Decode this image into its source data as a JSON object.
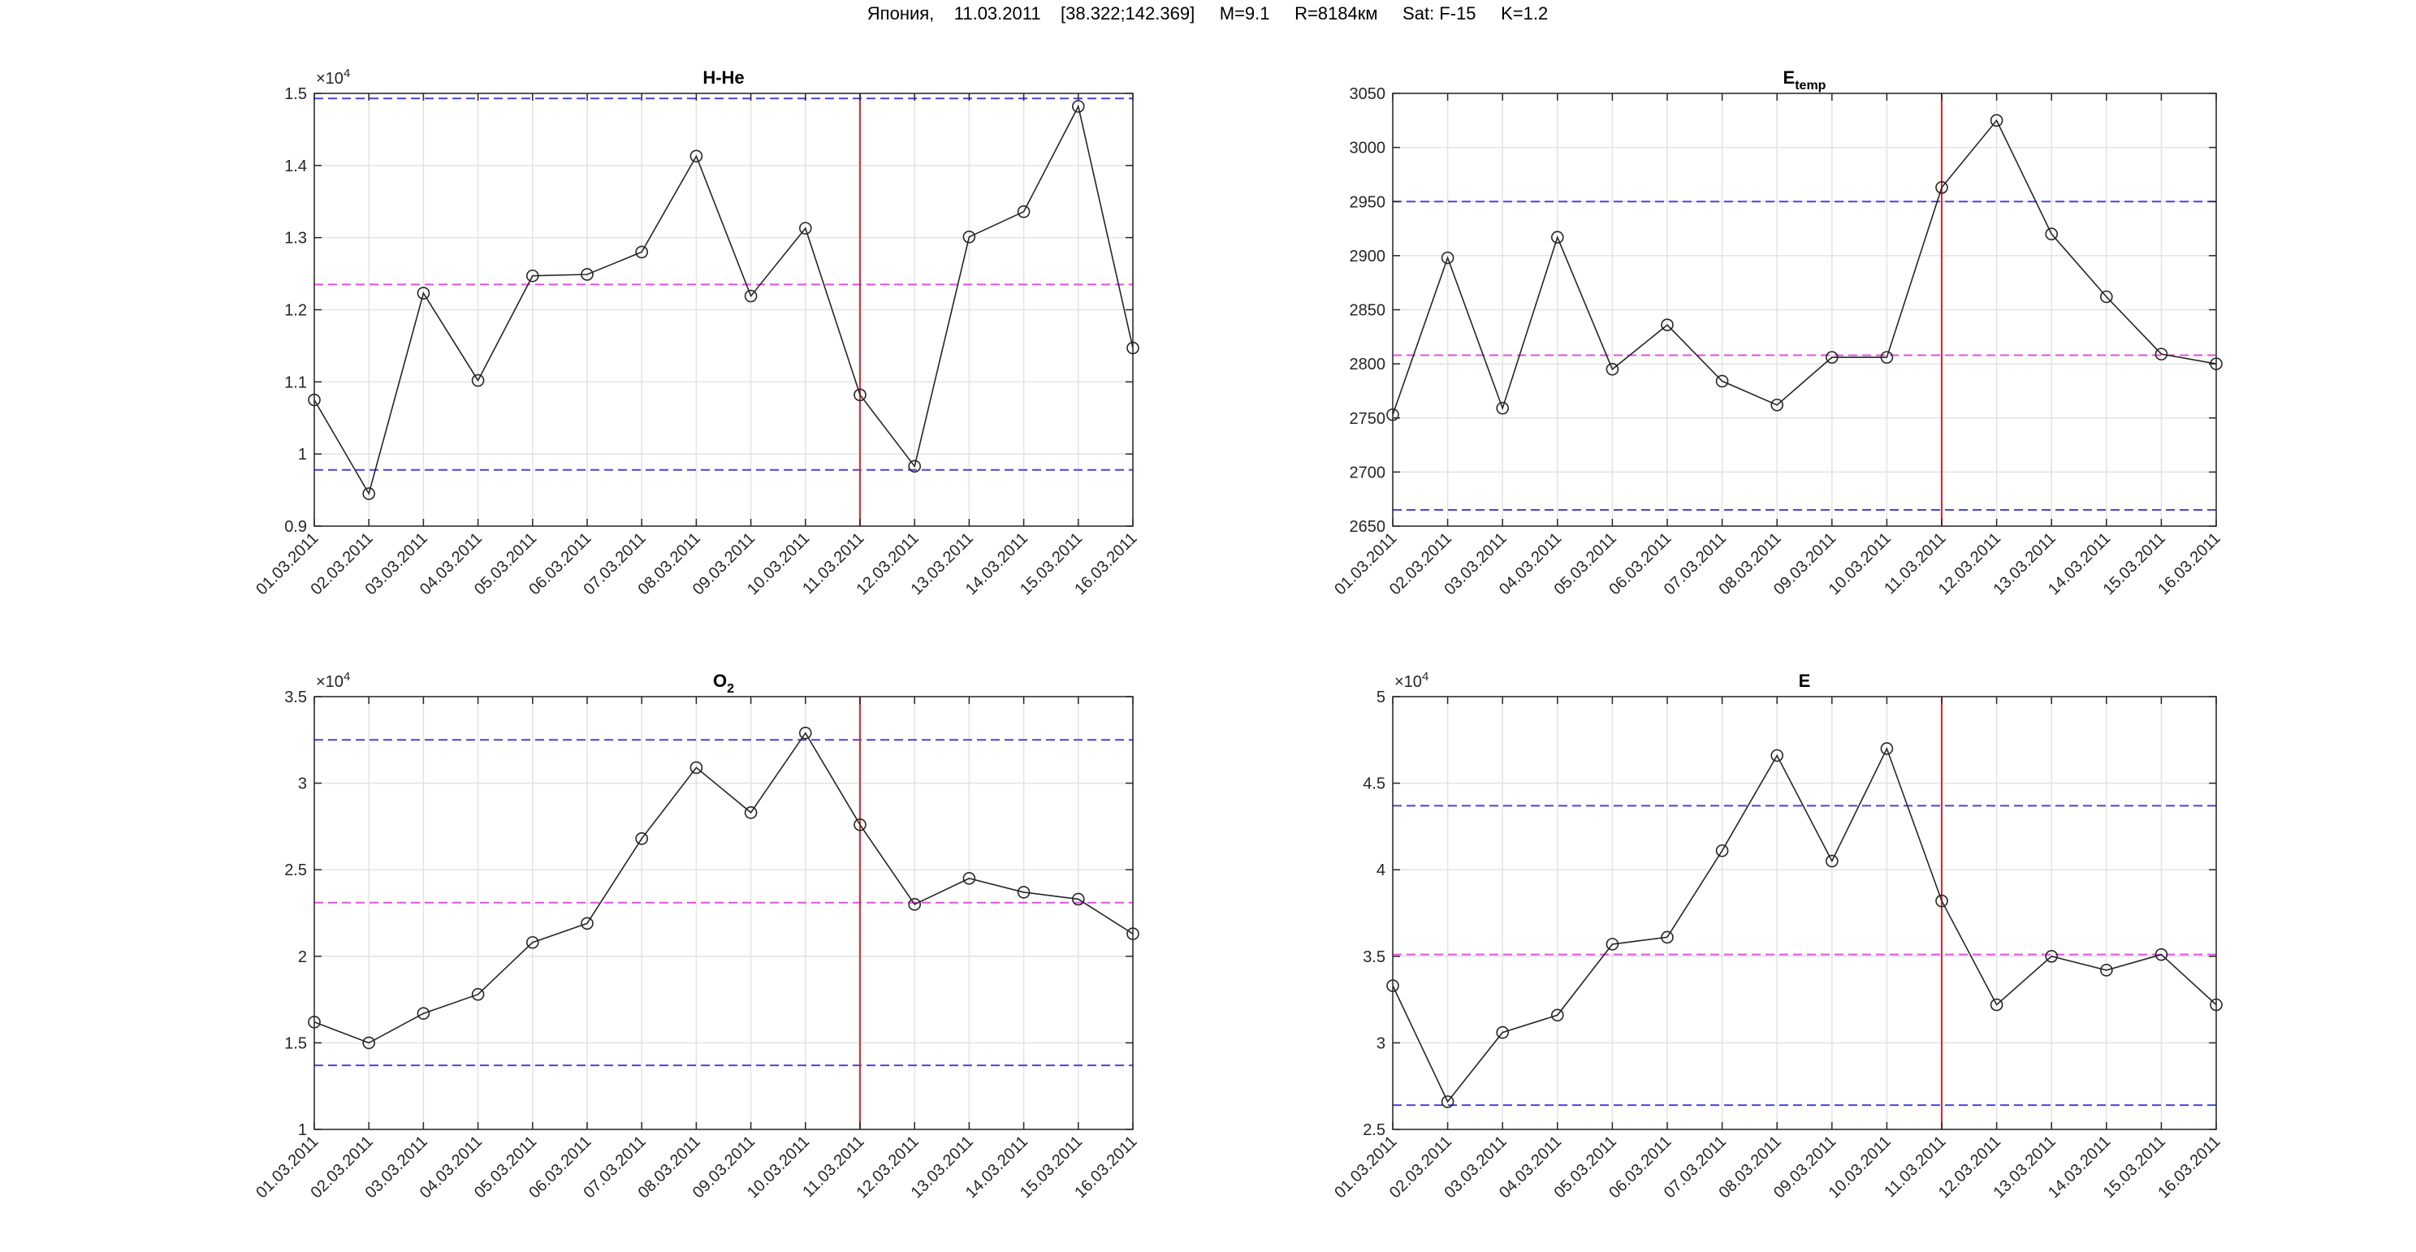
{
  "suptitle": "Япония,    11.03.2011    [38.322;142.369]     M=9.1     R=8184км     Sat: F-15     K=1.2",
  "chart_data": [
    {
      "type": "line",
      "title": "H-He",
      "title_sub": "",
      "exponent_label": "×10",
      "exponent_power": "4",
      "categories": [
        "01.03.2011",
        "02.03.2011",
        "03.03.2011",
        "04.03.2011",
        "05.03.2011",
        "06.03.2011",
        "07.03.2011",
        "08.03.2011",
        "09.03.2011",
        "10.03.2011",
        "11.03.2011",
        "12.03.2011",
        "13.03.2011",
        "14.03.2011",
        "15.03.2011",
        "16.03.2011"
      ],
      "series": [
        {
          "values": [
            1.075,
            0.945,
            1.223,
            1.102,
            1.247,
            1.249,
            1.28,
            1.413,
            1.219,
            1.313,
            1.082,
            0.983,
            1.301,
            1.336,
            1.482,
            1.147
          ]
        }
      ],
      "ylim": [
        0.9,
        1.5
      ],
      "yticks": [
        0.9,
        1.0,
        1.1,
        1.2,
        1.3,
        1.4,
        1.5
      ],
      "ytick_labels": [
        "0.9",
        "1",
        "1.1",
        "1.2",
        "1.3",
        "1.4",
        "1.5"
      ],
      "reference_lines": {
        "upper": 1.493,
        "mean": 1.235,
        "lower": 0.978
      },
      "event_index": 10,
      "grid": true,
      "colors": {
        "line": "#262626",
        "event": "#e8232a",
        "bound": "#4545e0",
        "mean": "#e34fe3"
      }
    },
    {
      "type": "line",
      "title": "E",
      "title_sub": "temp",
      "exponent_label": "",
      "exponent_power": "",
      "categories": [
        "01.03.2011",
        "02.03.2011",
        "03.03.2011",
        "04.03.2011",
        "05.03.2011",
        "06.03.2011",
        "07.03.2011",
        "08.03.2011",
        "09.03.2011",
        "10.03.2011",
        "11.03.2011",
        "12.03.2011",
        "13.03.2011",
        "14.03.2011",
        "15.03.2011",
        "16.03.2011"
      ],
      "series": [
        {
          "values": [
            2753,
            2898,
            2759,
            2917,
            2795,
            2836,
            2784,
            2762,
            2806,
            2806,
            2963,
            3025,
            2920,
            2862,
            2809,
            2800
          ]
        }
      ],
      "ylim": [
        2650,
        3050
      ],
      "yticks": [
        2650,
        2700,
        2750,
        2800,
        2850,
        2900,
        2950,
        3000,
        3050
      ],
      "ytick_labels": [
        "2650",
        "2700",
        "2750",
        "2800",
        "2850",
        "2900",
        "2950",
        "3000",
        "3050"
      ],
      "reference_lines": {
        "upper": 2950,
        "mean": 2808,
        "lower": 2665
      },
      "event_index": 10,
      "grid": true,
      "colors": {
        "line": "#262626",
        "event": "#e8232a",
        "bound": "#4545e0",
        "mean": "#e34fe3"
      }
    },
    {
      "type": "line",
      "title": "O",
      "title_sub": "2",
      "exponent_label": "×10",
      "exponent_power": "4",
      "categories": [
        "01.03.2011",
        "02.03.2011",
        "03.03.2011",
        "04.03.2011",
        "05.03.2011",
        "06.03.2011",
        "07.03.2011",
        "08.03.2011",
        "09.03.2011",
        "10.03.2011",
        "11.03.2011",
        "12.03.2011",
        "13.03.2011",
        "14.03.2011",
        "15.03.2011",
        "16.03.2011"
      ],
      "series": [
        {
          "values": [
            1.62,
            1.5,
            1.67,
            1.78,
            2.08,
            2.19,
            2.68,
            3.09,
            2.83,
            3.29,
            2.76,
            2.3,
            2.45,
            2.37,
            2.33,
            2.13
          ]
        }
      ],
      "ylim": [
        1.0,
        3.5
      ],
      "yticks": [
        1.0,
        1.5,
        2.0,
        2.5,
        3.0,
        3.5
      ],
      "ytick_labels": [
        "1",
        "1.5",
        "2",
        "2.5",
        "3",
        "3.5"
      ],
      "reference_lines": {
        "upper": 3.25,
        "mean": 2.31,
        "lower": 1.37
      },
      "event_index": 10,
      "grid": true,
      "colors": {
        "line": "#262626",
        "event": "#e8232a",
        "bound": "#4545e0",
        "mean": "#e34fe3"
      }
    },
    {
      "type": "line",
      "title": "E",
      "title_sub": "",
      "exponent_label": "×10",
      "exponent_power": "4",
      "categories": [
        "01.03.2011",
        "02.03.2011",
        "03.03.2011",
        "04.03.2011",
        "05.03.2011",
        "06.03.2011",
        "07.03.2011",
        "08.03.2011",
        "09.03.2011",
        "10.03.2011",
        "11.03.2011",
        "12.03.2011",
        "13.03.2011",
        "14.03.2011",
        "15.03.2011",
        "16.03.2011"
      ],
      "series": [
        {
          "values": [
            3.33,
            2.66,
            3.06,
            3.16,
            3.57,
            3.61,
            4.11,
            4.66,
            4.05,
            4.7,
            3.82,
            3.22,
            3.5,
            3.42,
            3.51,
            3.22
          ]
        }
      ],
      "ylim": [
        2.5,
        5.0
      ],
      "yticks": [
        2.5,
        3.0,
        3.5,
        4.0,
        4.5,
        5.0
      ],
      "ytick_labels": [
        "2.5",
        "3",
        "3.5",
        "4",
        "4.5",
        "5"
      ],
      "reference_lines": {
        "upper": 4.37,
        "mean": 3.51,
        "lower": 2.64
      },
      "event_index": 10,
      "grid": true,
      "colors": {
        "line": "#262626",
        "event": "#e8232a",
        "bound": "#4545e0",
        "mean": "#e34fe3"
      }
    }
  ]
}
